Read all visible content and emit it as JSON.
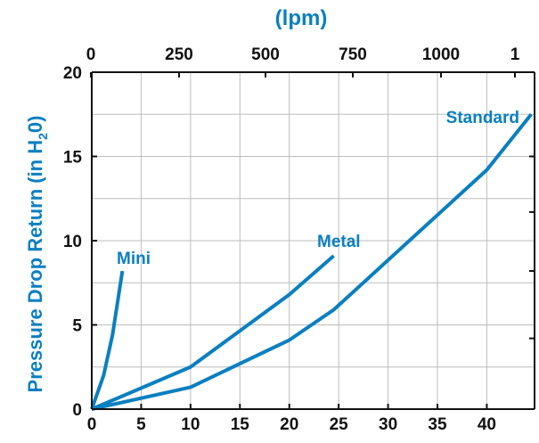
{
  "chart_data": {
    "type": "line",
    "ylabel_parts": [
      "Pressure Drop Return (in H",
      "2",
      "0)"
    ],
    "x_top_label": "(lpm)",
    "x_ticks": [
      0,
      5,
      10,
      15,
      20,
      25,
      30,
      35,
      40
    ],
    "x_top_ticks": [
      "0",
      "250",
      "500",
      "750",
      "1000",
      "1"
    ],
    "y_ticks": [
      0,
      5,
      10,
      15,
      20
    ],
    "xlim": [
      0,
      44.5
    ],
    "ylim": [
      0,
      20
    ],
    "grid": true,
    "series": [
      {
        "name": "Mini",
        "points": [
          [
            0,
            0
          ],
          [
            1.2,
            2
          ],
          [
            2.1,
            4.4
          ],
          [
            3.1,
            8.2
          ]
        ]
      },
      {
        "name": "Metal",
        "points": [
          [
            0,
            0
          ],
          [
            10,
            2.5
          ],
          [
            20,
            6.8
          ],
          [
            24.5,
            9.1
          ]
        ]
      },
      {
        "name": "Standard",
        "points": [
          [
            0,
            0
          ],
          [
            10,
            1.3
          ],
          [
            20,
            4.1
          ],
          [
            24.5,
            5.9
          ],
          [
            40,
            14.2
          ],
          [
            44.5,
            17.5
          ]
        ]
      }
    ],
    "colors": {
      "series": "#0a7fc1",
      "axis": "#111111",
      "grid": "#bdbdbd"
    }
  }
}
